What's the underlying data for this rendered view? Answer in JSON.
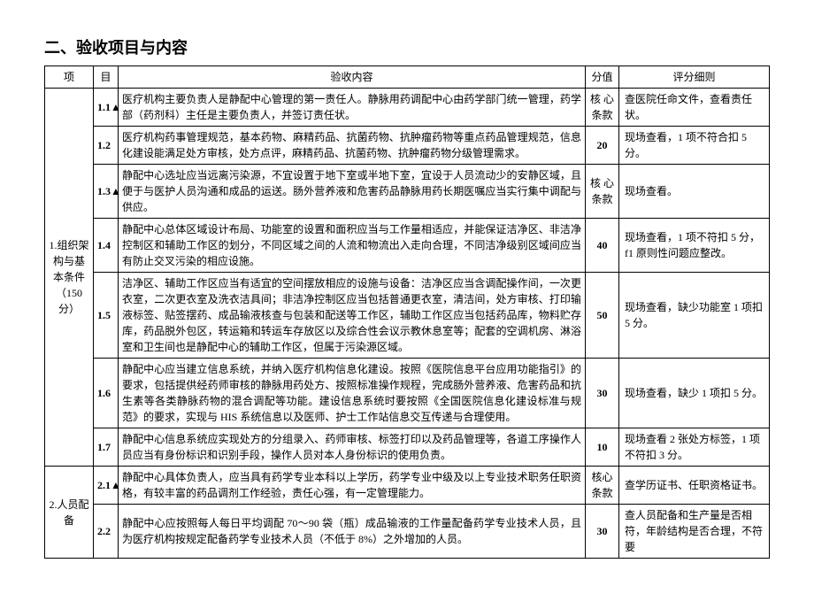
{
  "title": "二、验收项目与内容",
  "headers": {
    "c1": "项",
    "c2": "目",
    "c3": "验收内容",
    "c4": "分值",
    "c5": "评分细则"
  },
  "section1": {
    "label": "1.组织架构与基本条件（150分）",
    "rows": {
      "r11": {
        "num": "1.1▲",
        "content": "医疗机构主要负责人是静配中心管理的第一责任人。静脉用药调配中心由药学部门统一管理，药学部（药剂科）主任是主要负责人，并签订责任状。",
        "score": "核 心条款",
        "rule": "查医院任命文件，查看责任状。"
      },
      "r12": {
        "num": "1.2",
        "content": "医疗机构药事管理规范，基本药物、麻精药品、抗菌药物、抗肿瘤药物等重点药品管理规范，信息化建设能满足处方审核，处方点评，麻精药品、抗菌药物、抗肿瘤药物分级管理需求。",
        "score": "20",
        "rule": "现场查看，1 项不符合扣 5 分。"
      },
      "r13": {
        "num": "1.3▲",
        "content": "静配中心选址应当远离污染源，不宜设置于地下室或半地下室，宜设于人员流动少的安静区域，且便于与医护人员沟通和成品的运送。肠外营养液和危害药品静脉用药长期医嘱应当实行集中调配与供应。",
        "score": "核 心条款",
        "rule": "现场查看。"
      },
      "r14": {
        "num": "1.4",
        "content": "静配中心总体区域设计布局、功能室的设置和面积应当与工作量相适应，并能保证洁净区、非洁净控制区和辅助工作区的划分，不同区域之间的人流和物流出入走向合理，不同洁净级别区域间应当有防止交叉污染的相应设施。",
        "score": "40",
        "rule": "现场查看，1 项不符扣 5 分，f1 原则性问题应整改。"
      },
      "r15": {
        "num": "1.5",
        "content": "洁净区、辅助工作区应当有适宜的空间摆放相应的设施与设备：洁净区应当含调配操作间，一次更衣室，二次更衣室及洗衣洁具间；非洁净控制区应当包括普通更衣室，清洁间，处方审核、打印输液标签、贴签摆药、成品输液核查与包装和配送等工作区，辅助工作区应当包括药品库，物料贮存库，药品脱外包区，转运箱和转运车存放区以及综合性会议示教休息室等；配套的空调机房、淋浴室和卫生间也是静配中心的辅助工作区，但属于污染源区域。",
        "score": "50",
        "rule": "现场查看，缺少功能室 1 项扣 5 分。"
      },
      "r16": {
        "num": "1.6",
        "content": "静配中心应当建立信息系统，并纳入医疗机构信息化建设。按照《医院信息平台应用功能指引》的要求，包括提供经药师审核的静脉用药处方、按照标准操作规程，完成肠外营养液、危害药品和抗生素等各类静脉药物的混合调配等功能。建设信息系统时要按照《全国医院信息化建设标准与规范》的要求，实现与 HIS 系统信息以及医师、护士工作站信息交互传递与合理使用。",
        "score": "30",
        "rule": "现场查看，缺少 1 项扣 5 分。"
      },
      "r17": {
        "num": "1.7",
        "content": "静配中心信息系统应实现处方的分组录入、药师审核、标签打印以及药品管理等，各道工序操作人员应当有身份标识和识别手段，操作人员对本人身份标识的使用负责。",
        "score": "10",
        "rule": "现场查看 2 张处方标签，1 项不符扣 3 分。"
      }
    }
  },
  "section2": {
    "label": "2.人员配备",
    "rows": {
      "r21": {
        "num": "2.1▲",
        "content": "静配中心具体负责人，应当具有药学专业本科以上学历，药学专业中级及以上专业技术职务任职资格，有较丰富的药品调剂工作经验，责任心强，有一定管理能力。",
        "score": "核心条款",
        "rule": "查学历证书、任职资格证书。"
      },
      "r22": {
        "num": "2.2",
        "content": "静配中心应按照每人每日平均调配 70～90 袋（瓶）成品输液的工作量配备药学专业技术人员，且为医疗机构按规定配备药学专业技术人员（不低于 8%）之外增加的人员。",
        "score": "30",
        "rule": "查人员配备和生产量是否相符，年龄结构是否合理，不符要"
      }
    }
  }
}
